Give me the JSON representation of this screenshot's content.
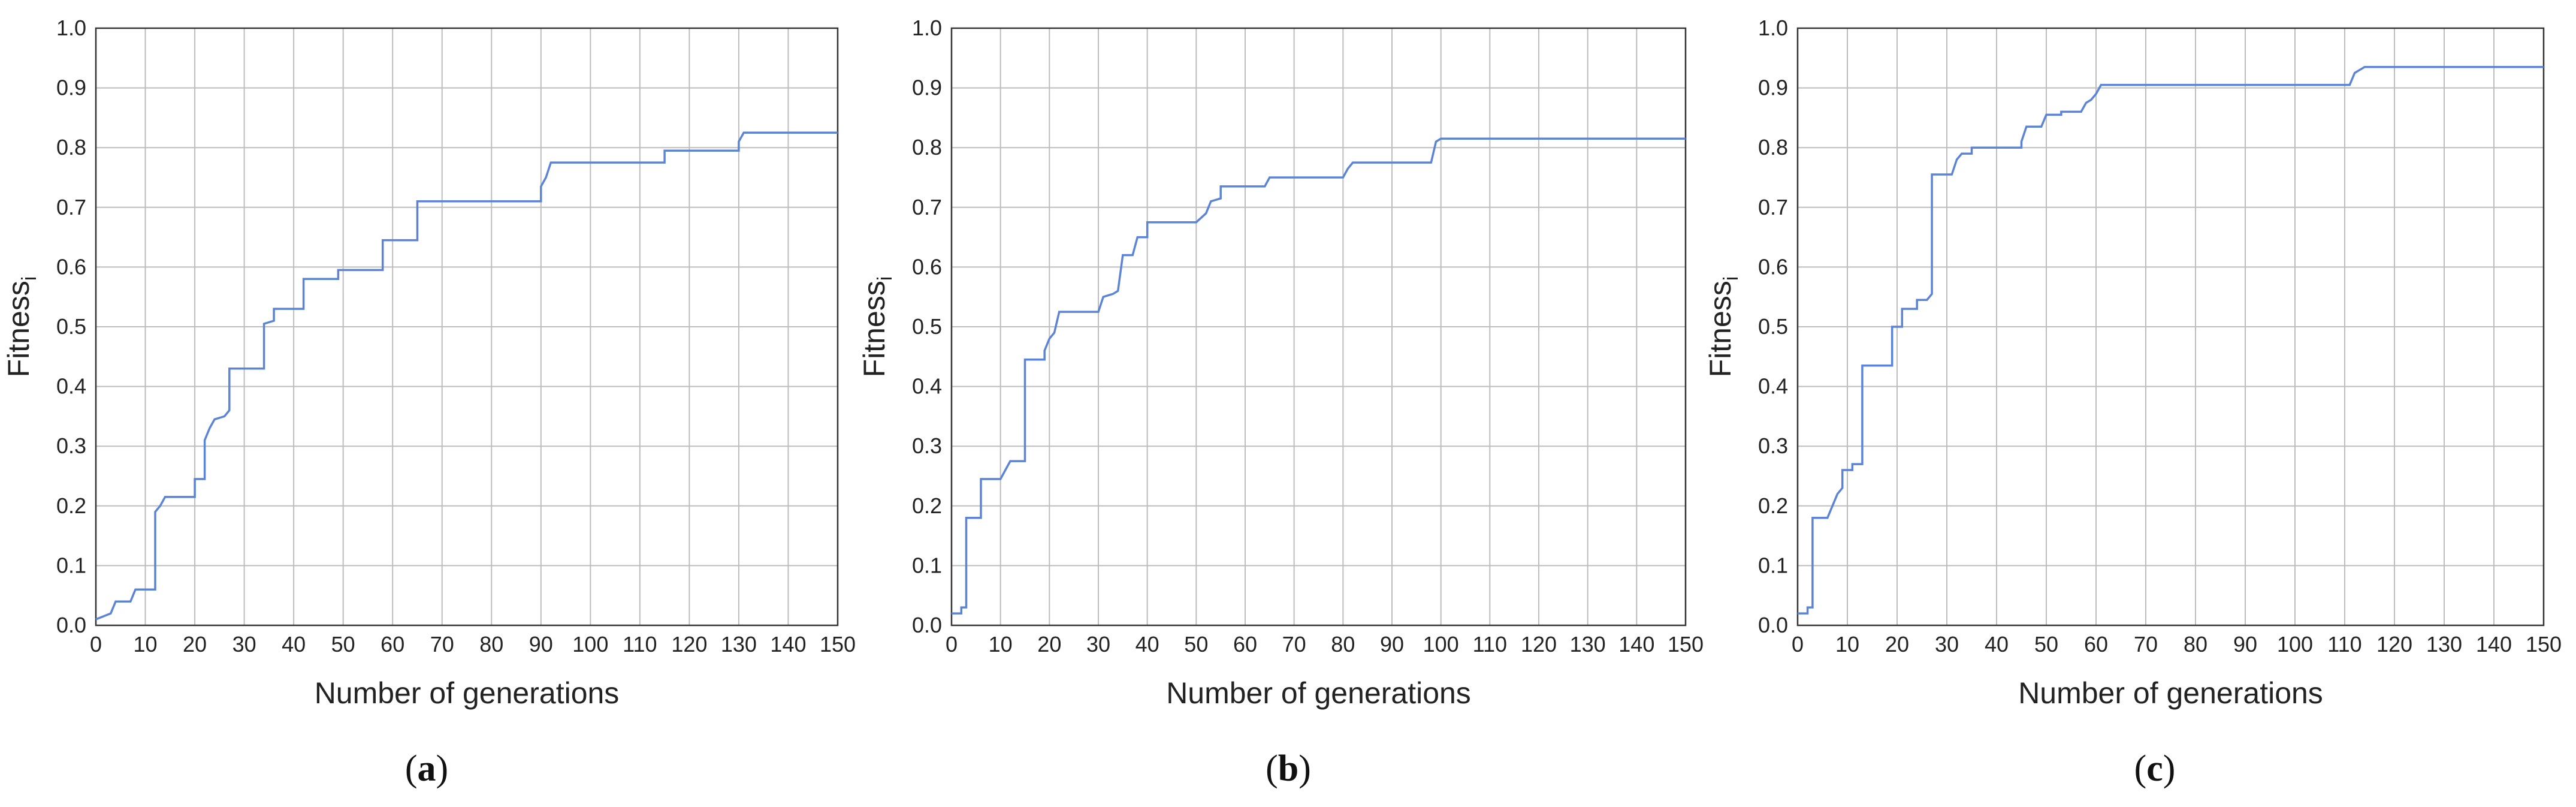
{
  "chart_data": [
    {
      "id": "a",
      "type": "line",
      "step": true,
      "caption_letter": "a",
      "xlabel": "Number of generations",
      "ylabel_main": "Fitness",
      "ylabel_sub": "i",
      "xlim": [
        0,
        150
      ],
      "ylim": [
        0,
        1.0
      ],
      "xticks": [
        0,
        10,
        20,
        30,
        40,
        50,
        60,
        70,
        80,
        90,
        100,
        110,
        120,
        130,
        140,
        150
      ],
      "yticks": [
        "0.0",
        "0.1",
        "0.2",
        "0.3",
        "0.4",
        "0.5",
        "0.6",
        "0.7",
        "0.8",
        "0.9",
        "1.0"
      ],
      "grid": true,
      "color": "#5b84d6",
      "series": [
        {
          "points": [
            [
              0,
              0.01
            ],
            [
              3,
              0.02
            ],
            [
              4,
              0.04
            ],
            [
              7,
              0.04
            ],
            [
              8,
              0.06
            ],
            [
              12,
              0.06
            ],
            [
              12,
              0.19
            ],
            [
              13,
              0.2
            ],
            [
              14,
              0.215
            ],
            [
              20,
              0.215
            ],
            [
              20,
              0.245
            ],
            [
              22,
              0.245
            ],
            [
              22,
              0.31
            ],
            [
              23,
              0.33
            ],
            [
              24,
              0.345
            ],
            [
              26,
              0.35
            ],
            [
              27,
              0.36
            ],
            [
              27,
              0.43
            ],
            [
              34,
              0.43
            ],
            [
              34,
              0.505
            ],
            [
              36,
              0.51
            ],
            [
              36,
              0.53
            ],
            [
              42,
              0.53
            ],
            [
              42,
              0.58
            ],
            [
              49,
              0.58
            ],
            [
              49,
              0.595
            ],
            [
              58,
              0.595
            ],
            [
              58,
              0.645
            ],
            [
              65,
              0.645
            ],
            [
              65,
              0.71
            ],
            [
              90,
              0.71
            ],
            [
              90,
              0.735
            ],
            [
              91,
              0.75
            ],
            [
              92,
              0.775
            ],
            [
              115,
              0.775
            ],
            [
              115,
              0.795
            ],
            [
              130,
              0.795
            ],
            [
              130,
              0.81
            ],
            [
              131,
              0.825
            ],
            [
              150,
              0.825
            ]
          ]
        }
      ]
    },
    {
      "id": "b",
      "type": "line",
      "step": true,
      "caption_letter": "b",
      "xlabel": "Number of generations",
      "ylabel_main": "Fitness",
      "ylabel_sub": "i",
      "xlim": [
        0,
        150
      ],
      "ylim": [
        0,
        1.0
      ],
      "xticks": [
        0,
        10,
        20,
        30,
        40,
        50,
        60,
        70,
        80,
        90,
        100,
        110,
        120,
        130,
        140,
        150
      ],
      "yticks": [
        "0.0",
        "0.1",
        "0.2",
        "0.3",
        "0.4",
        "0.5",
        "0.6",
        "0.7",
        "0.8",
        "0.9",
        "1.0"
      ],
      "grid": true,
      "color": "#5b84d6",
      "series": [
        {
          "points": [
            [
              0,
              0.02
            ],
            [
              2,
              0.02
            ],
            [
              2,
              0.03
            ],
            [
              3,
              0.03
            ],
            [
              3,
              0.18
            ],
            [
              6,
              0.18
            ],
            [
              6,
              0.245
            ],
            [
              10,
              0.245
            ],
            [
              11,
              0.26
            ],
            [
              12,
              0.275
            ],
            [
              15,
              0.275
            ],
            [
              15,
              0.445
            ],
            [
              19,
              0.445
            ],
            [
              19,
              0.46
            ],
            [
              20,
              0.48
            ],
            [
              21,
              0.49
            ],
            [
              22,
              0.525
            ],
            [
              30,
              0.525
            ],
            [
              31,
              0.55
            ],
            [
              33,
              0.555
            ],
            [
              34,
              0.56
            ],
            [
              35,
              0.62
            ],
            [
              37,
              0.62
            ],
            [
              38,
              0.65
            ],
            [
              40,
              0.65
            ],
            [
              40,
              0.675
            ],
            [
              50,
              0.675
            ],
            [
              52,
              0.69
            ],
            [
              53,
              0.71
            ],
            [
              55,
              0.715
            ],
            [
              55,
              0.735
            ],
            [
              64,
              0.735
            ],
            [
              65,
              0.75
            ],
            [
              80,
              0.75
            ],
            [
              81,
              0.765
            ],
            [
              82,
              0.775
            ],
            [
              98,
              0.775
            ],
            [
              99,
              0.81
            ],
            [
              100,
              0.815
            ],
            [
              150,
              0.815
            ]
          ]
        }
      ]
    },
    {
      "id": "c",
      "type": "line",
      "step": true,
      "caption_letter": "c",
      "xlabel": "Number of generations",
      "ylabel_main": "Fitness",
      "ylabel_sub": "i",
      "xlim": [
        0,
        150
      ],
      "ylim": [
        0,
        1.0
      ],
      "xticks": [
        0,
        10,
        20,
        30,
        40,
        50,
        60,
        70,
        80,
        90,
        100,
        110,
        120,
        130,
        140,
        150
      ],
      "yticks": [
        "0.0",
        "0.1",
        "0.2",
        "0.3",
        "0.4",
        "0.5",
        "0.6",
        "0.7",
        "0.8",
        "0.9",
        "1.0"
      ],
      "grid": true,
      "color": "#5b84d6",
      "series": [
        {
          "points": [
            [
              0,
              0.02
            ],
            [
              2,
              0.02
            ],
            [
              2,
              0.03
            ],
            [
              3,
              0.03
            ],
            [
              3,
              0.18
            ],
            [
              6,
              0.18
            ],
            [
              7,
              0.2
            ],
            [
              8,
              0.22
            ],
            [
              9,
              0.23
            ],
            [
              9,
              0.26
            ],
            [
              11,
              0.26
            ],
            [
              11,
              0.27
            ],
            [
              13,
              0.27
            ],
            [
              13,
              0.435
            ],
            [
              19,
              0.435
            ],
            [
              19,
              0.5
            ],
            [
              21,
              0.5
            ],
            [
              21,
              0.53
            ],
            [
              24,
              0.53
            ],
            [
              24,
              0.545
            ],
            [
              26,
              0.545
            ],
            [
              27,
              0.555
            ],
            [
              27,
              0.755
            ],
            [
              31,
              0.755
            ],
            [
              32,
              0.78
            ],
            [
              33,
              0.79
            ],
            [
              35,
              0.79
            ],
            [
              35,
              0.8
            ],
            [
              45,
              0.8
            ],
            [
              45,
              0.81
            ],
            [
              46,
              0.835
            ],
            [
              49,
              0.835
            ],
            [
              50,
              0.855
            ],
            [
              53,
              0.855
            ],
            [
              53,
              0.86
            ],
            [
              57,
              0.86
            ],
            [
              58,
              0.875
            ],
            [
              59,
              0.88
            ],
            [
              60,
              0.89
            ],
            [
              61,
              0.905
            ],
            [
              111,
              0.905
            ],
            [
              112,
              0.925
            ],
            [
              114,
              0.935
            ],
            [
              150,
              0.935
            ]
          ]
        }
      ]
    }
  ]
}
